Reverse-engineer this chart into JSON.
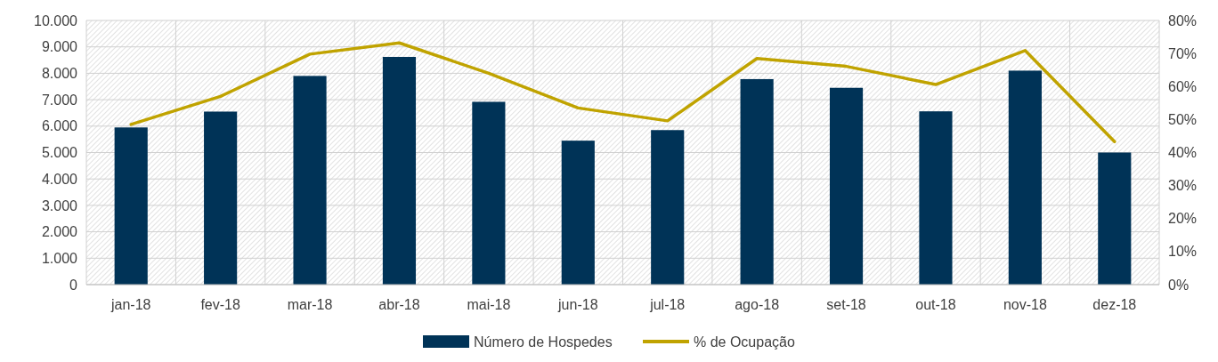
{
  "chart_data": {
    "type": "bar",
    "categories": [
      "jan-18",
      "fev-18",
      "mar-18",
      "abr-18",
      "mai-18",
      "jun-18",
      "jul-18",
      "ago-18",
      "set-18",
      "out-18",
      "nov-18",
      "dez-18"
    ],
    "series": [
      {
        "name": "Número de Hospedes",
        "color": "#003357",
        "values": [
          5950,
          6550,
          7900,
          8620,
          6920,
          5450,
          5850,
          7780,
          7450,
          6560,
          8100,
          5000
        ]
      },
      {
        "name": "% de Ocupação",
        "type": "line",
        "axis": "y2",
        "color": "#c0a300",
        "values": [
          48.5,
          57,
          69.8,
          73.2,
          64,
          53.5,
          49.6,
          68.5,
          66.1,
          60.6,
          70.9,
          43.3
        ]
      }
    ],
    "ylim": [
      0,
      10000
    ],
    "yticks": [
      0,
      {
        "value": 1000,
        "label": "1.000"
      },
      {
        "value": 2000,
        "label": "2.000"
      },
      {
        "value": 3000,
        "label": "3.000"
      },
      {
        "value": 4000,
        "label": "4.000"
      },
      {
        "value": 5000,
        "label": "5.000"
      },
      {
        "value": 6000,
        "label": "6.000"
      },
      {
        "value": 7000,
        "label": "7.000"
      },
      {
        "value": 8000,
        "label": "8.000"
      },
      {
        "value": 9000,
        "label": "9.000"
      },
      {
        "value": 10000,
        "label": "10.000"
      }
    ],
    "y2lim": [
      0,
      80
    ],
    "y2ticks": [
      {
        "value": 0,
        "label": "0%"
      },
      {
        "value": 10,
        "label": "10%"
      },
      {
        "value": 20,
        "label": "20%"
      },
      {
        "value": 30,
        "label": "30%"
      },
      {
        "value": 40,
        "label": "40%"
      },
      {
        "value": 50,
        "label": "50%"
      },
      {
        "value": 60,
        "label": "60%"
      },
      {
        "value": 70,
        "label": "70%"
      },
      {
        "value": 80,
        "label": "80%"
      }
    ],
    "grid": true,
    "legend": "bottom",
    "marker": "none",
    "line_style": "solid"
  }
}
